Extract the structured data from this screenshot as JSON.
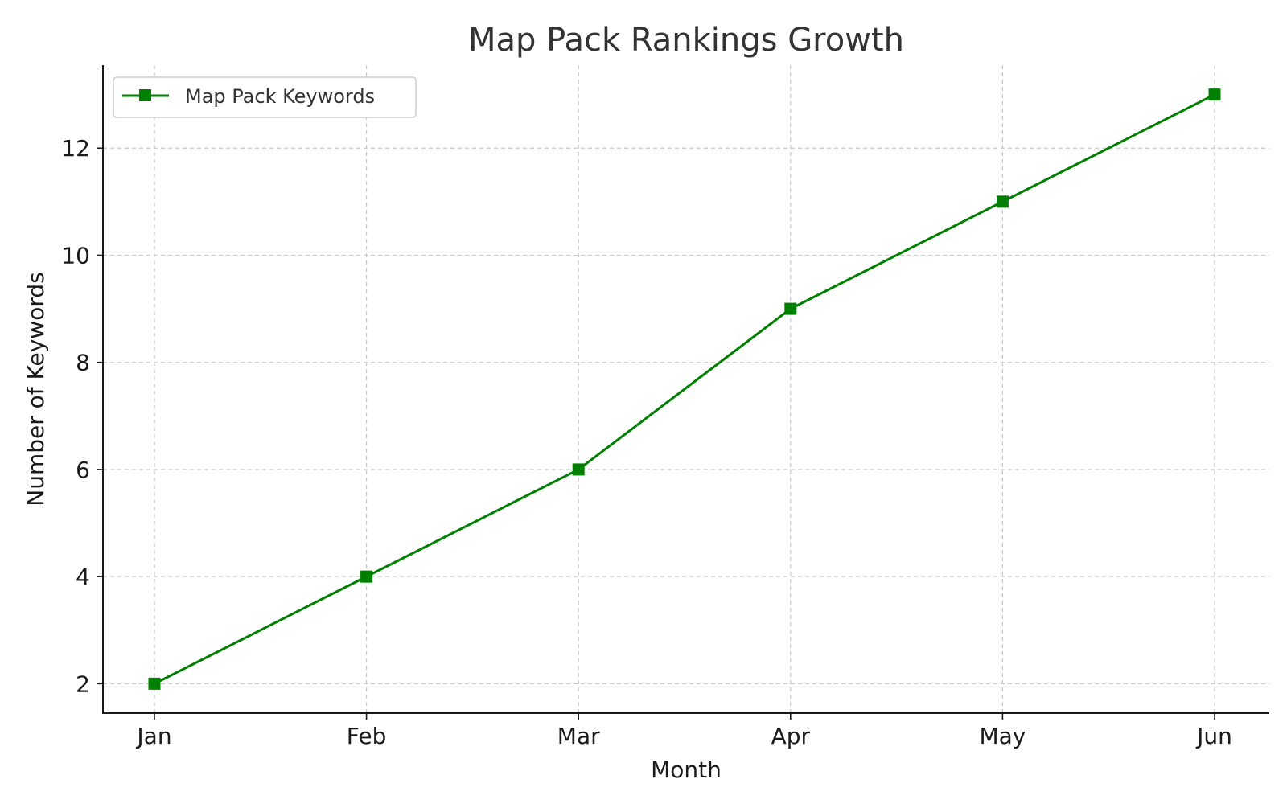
{
  "chart_data": {
    "type": "line",
    "title": "Map Pack Rankings Growth",
    "xlabel": "Month",
    "ylabel": "Number of Keywords",
    "categories": [
      "Jan",
      "Feb",
      "Mar",
      "Apr",
      "May",
      "Jun"
    ],
    "series": [
      {
        "name": "Map Pack Keywords",
        "values": [
          2,
          4,
          6,
          9,
          11,
          13
        ],
        "color": "#008000",
        "marker": "square"
      }
    ],
    "yticks": [
      2,
      4,
      6,
      8,
      10,
      12
    ],
    "ylim": [
      1.45,
      13.55
    ],
    "grid": true,
    "legend_position": "top-left"
  }
}
